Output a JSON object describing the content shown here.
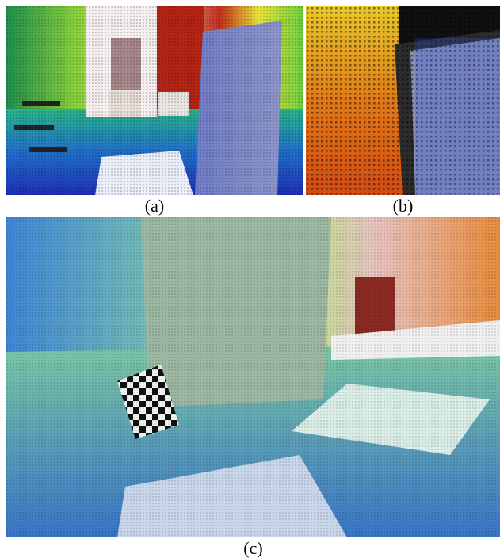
{
  "figure": {
    "panels": [
      {
        "id": "a",
        "label": "(a)"
      },
      {
        "id": "b",
        "label": "(b)"
      },
      {
        "id": "c",
        "label": "(c)"
      }
    ]
  }
}
